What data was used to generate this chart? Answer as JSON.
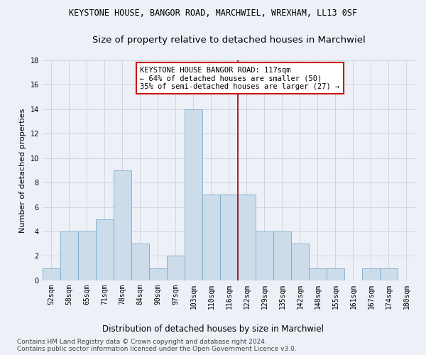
{
  "title": "KEYSTONE HOUSE, BANGOR ROAD, MARCHWIEL, WREXHAM, LL13 0SF",
  "subtitle": "Size of property relative to detached houses in Marchwiel",
  "xlabel": "Distribution of detached houses by size in Marchwiel",
  "ylabel": "Number of detached properties",
  "categories": [
    "52sqm",
    "58sqm",
    "65sqm",
    "71sqm",
    "78sqm",
    "84sqm",
    "90sqm",
    "97sqm",
    "103sqm",
    "110sqm",
    "116sqm",
    "122sqm",
    "129sqm",
    "135sqm",
    "142sqm",
    "148sqm",
    "155sqm",
    "161sqm",
    "167sqm",
    "174sqm",
    "180sqm"
  ],
  "values": [
    1,
    4,
    4,
    5,
    9,
    3,
    1,
    2,
    14,
    7,
    7,
    7,
    4,
    4,
    3,
    1,
    1,
    0,
    1,
    1,
    0
  ],
  "bar_color": "#ccdcea",
  "bar_edgecolor": "#7aaac8",
  "grid_color": "#c8d0dc",
  "background_color": "#edf1f7",
  "red_line_color": "#990000",
  "red_line_xidx": 10.5,
  "annotation_text": "KEYSTONE HOUSE BANGOR ROAD: 117sqm\n← 64% of detached houses are smaller (50)\n35% of semi-detached houses are larger (27) →",
  "annotation_box_color": "#ffffff",
  "annotation_box_edgecolor": "#cc0000",
  "ylim": [
    0,
    18
  ],
  "yticks": [
    0,
    2,
    4,
    6,
    8,
    10,
    12,
    14,
    16,
    18
  ],
  "footer1": "Contains HM Land Registry data © Crown copyright and database right 2024.",
  "footer2": "Contains public sector information licensed under the Open Government Licence v3.0.",
  "title_fontsize": 8.5,
  "subtitle_fontsize": 9.5,
  "xlabel_fontsize": 8.5,
  "ylabel_fontsize": 8,
  "tick_fontsize": 7,
  "annotation_fontsize": 7.5,
  "footer_fontsize": 6.5
}
